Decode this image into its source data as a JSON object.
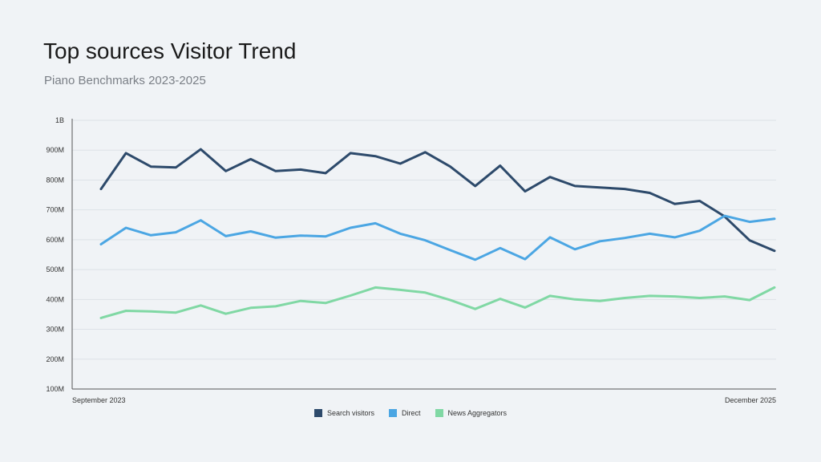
{
  "chart_data": {
    "type": "line",
    "title": "Top sources Visitor Trend",
    "subtitle": "Piano Benchmarks 2023-2025",
    "x_tick_labels": [
      "September 2023",
      "December 2025"
    ],
    "y_tick_labels": [
      "100M",
      "200M",
      "300M",
      "400M",
      "500M",
      "600M",
      "700M",
      "800M",
      "900M",
      "1B"
    ],
    "ylim": [
      100,
      1000
    ],
    "y_unit": "M",
    "grid": true,
    "legend_position": "bottom",
    "series": [
      {
        "name": "Search visitors",
        "color": "#2d4a6b",
        "values": [
          770,
          890,
          845,
          842,
          903,
          830,
          870,
          830,
          835,
          823,
          890,
          880,
          855,
          893,
          845,
          780,
          848,
          762,
          810,
          780,
          775,
          770,
          757,
          720,
          730,
          678,
          598,
          563
        ]
      },
      {
        "name": "Direct",
        "color": "#4ba6e3",
        "values": [
          585,
          640,
          615,
          625,
          665,
          612,
          628,
          607,
          614,
          611,
          640,
          655,
          620,
          598,
          565,
          533,
          572,
          535,
          608,
          568,
          595,
          606,
          620,
          608,
          630,
          680,
          660,
          670
        ]
      },
      {
        "name": "News Aggregators",
        "color": "#80d8a4",
        "values": [
          338,
          362,
          360,
          356,
          380,
          352,
          372,
          377,
          395,
          388,
          413,
          440,
          432,
          423,
          398,
          368,
          402,
          373,
          412,
          400,
          395,
          405,
          412,
          410,
          405,
          410,
          398,
          440
        ]
      }
    ]
  }
}
